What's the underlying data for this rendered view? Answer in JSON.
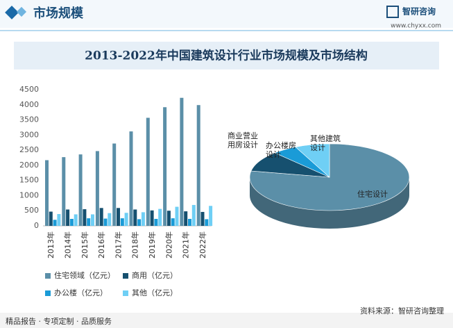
{
  "header": {
    "title": "市场规模",
    "brand": "智研咨询",
    "url": "www.chyxx.com"
  },
  "title": "2013-2022年中国建筑设计行业市场规模及市场结构",
  "chart_data": [
    {
      "type": "bar",
      "categories": [
        "2013年",
        "2014年",
        "2015年",
        "2016年",
        "2017年",
        "2018年",
        "2019年",
        "2020年",
        "2021年",
        "2022年"
      ],
      "series": [
        {
          "name": "住宅领域（亿元）",
          "color": "#5b8fa8",
          "values": [
            2170,
            2270,
            2360,
            2470,
            2720,
            3120,
            3570,
            3920,
            4230,
            3990
          ]
        },
        {
          "name": "商用（亿元）",
          "color": "#16506f",
          "values": [
            470,
            540,
            550,
            590,
            590,
            540,
            510,
            500,
            480,
            460
          ]
        },
        {
          "name": "办公楼（亿元）",
          "color": "#1a9bd7",
          "values": [
            200,
            230,
            250,
            240,
            250,
            220,
            230,
            250,
            230,
            220
          ]
        },
        {
          "name": "其他（亿元）",
          "color": "#6fcff5",
          "values": [
            390,
            380,
            380,
            420,
            430,
            450,
            560,
            630,
            690,
            660
          ]
        }
      ],
      "ylim": [
        0,
        4500
      ],
      "yticks": [
        0,
        500,
        1000,
        1500,
        2000,
        2500,
        3000,
        3500,
        4000,
        4500
      ],
      "grid": false
    },
    {
      "type": "pie",
      "categories": [
        "住宅设计",
        "商业营业用房设计",
        "办公楼房设计",
        "其他建筑设计"
      ],
      "values": [
        78,
        10,
        5,
        7
      ],
      "colors": [
        "#5b8fa8",
        "#16506f",
        "#1a9bd7",
        "#6fcff5"
      ]
    }
  ],
  "footer": {
    "slogan": "精品报告 · 专项定制 · 品质服务",
    "source": "资料来源：智研咨询整理"
  }
}
